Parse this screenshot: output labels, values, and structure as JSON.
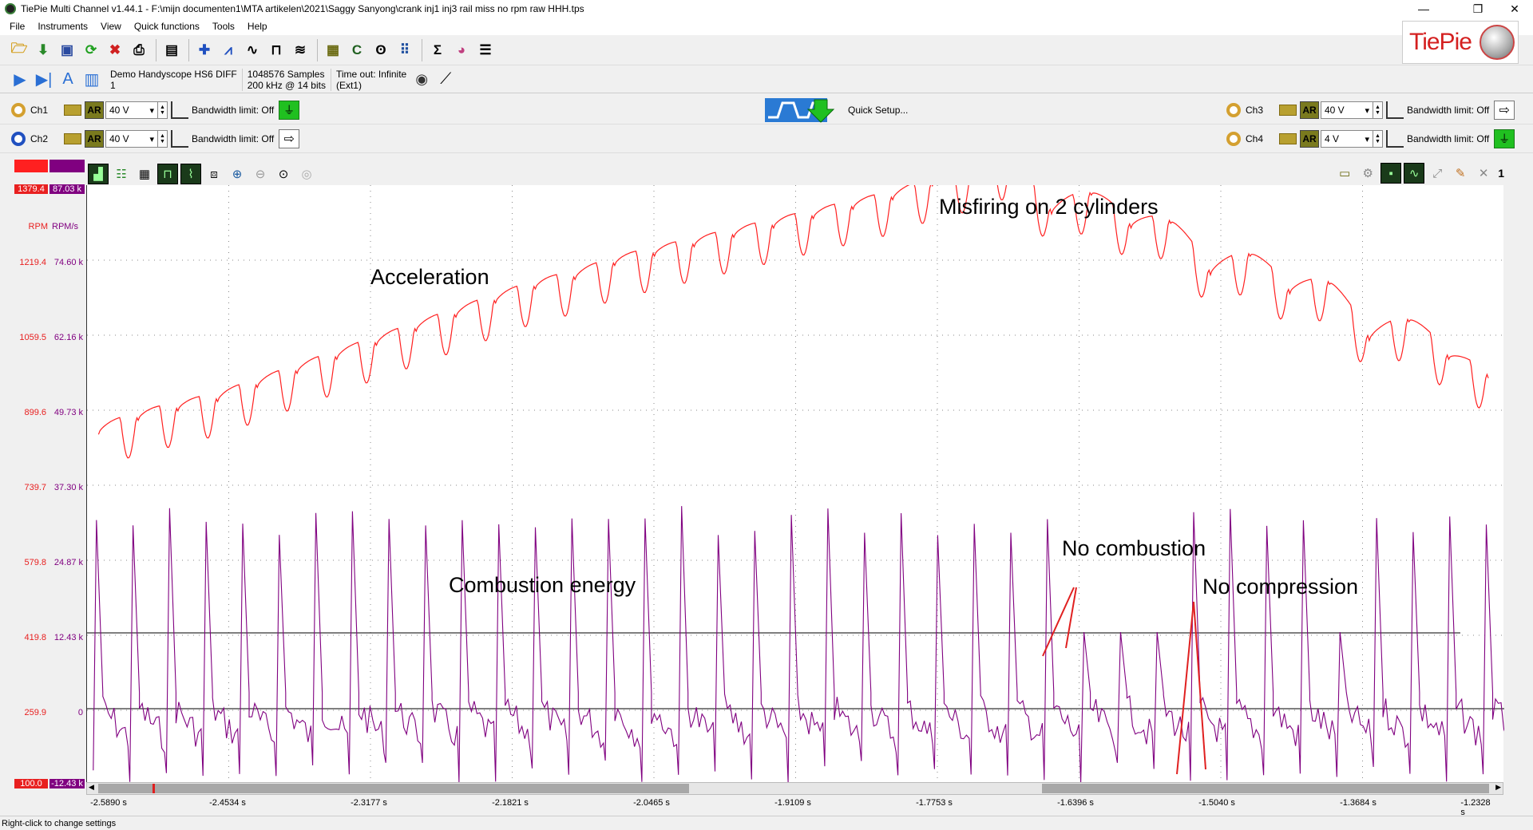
{
  "window": {
    "title": "TiePie Multi Channel v1.44.1 - F:\\mijn documenten1\\MTA artikelen\\2021\\Saggy Sanyong\\crank inj1 inj3 rail miss no rpm raw HHH.tps",
    "minimize": "—",
    "maximize": "❐",
    "close": "✕"
  },
  "menu": [
    {
      "label": "File"
    },
    {
      "label": "Instruments"
    },
    {
      "label": "View"
    },
    {
      "label": "Quick functions"
    },
    {
      "label": "Tools"
    },
    {
      "label": "Help"
    }
  ],
  "logo": {
    "text": "TiePie"
  },
  "acquisition": {
    "device_line1": "Demo Handyscope HS6 DIFF",
    "device_line2": "1",
    "samples_line1": "1048576 Samples",
    "samples_line2": "200 kHz @ 14 bits",
    "timeout_line1": "Time out: Infinite",
    "timeout_line2": "(Ext1)"
  },
  "channels": {
    "ch1": {
      "label": "Ch1",
      "ar": "AR",
      "range": "40 V",
      "bandwidth": "Bandwidth limit: Off"
    },
    "ch2": {
      "label": "Ch2",
      "ar": "AR",
      "range": "40 V",
      "bandwidth": "Bandwidth limit: Off"
    },
    "ch3": {
      "label": "Ch3",
      "ar": "AR",
      "range": "40 V",
      "bandwidth": "Bandwidth limit: Off"
    },
    "ch4": {
      "label": "Ch4",
      "ar": "AR",
      "range": "4 V",
      "bandwidth": "Bandwidth limit: Off"
    }
  },
  "quick_setup": {
    "label": "Quick Setup..."
  },
  "scope": {
    "window_index": "1",
    "axis_top_red": "1379.4",
    "axis_top_purple": "87.03 k",
    "axis_bottom_red": "100.0",
    "axis_bottom_purple": "-12.43 k",
    "unit_red": "RPM",
    "unit_purple": "RPM/s",
    "colors": {
      "rpm": "#ff2020",
      "energy": "#800080"
    }
  },
  "chart_data": {
    "type": "line",
    "title": "",
    "xlabel": "",
    "ylabel": "",
    "x_ticks": [
      "-2.5890 s",
      "-2.4534 s",
      "-2.3177 s",
      "-2.1821 s",
      "-2.0465 s",
      "-1.9109 s",
      "-1.7753 s",
      "-1.6396 s",
      "-1.5040 s",
      "-1.3684 s",
      "-1.2328 s"
    ],
    "xlim": [
      -2.589,
      -1.2328
    ],
    "y_ticks_rpm": [
      "1219.4",
      "1059.5",
      "899.6",
      "739.7",
      "579.8",
      "419.8",
      "259.9"
    ],
    "y_ticks_rpms": [
      "74.60 k",
      "62.16 k",
      "49.73 k",
      "37.30 k",
      "24.87 k",
      "12.43 k",
      "0"
    ],
    "ylim_rpm": [
      100.0,
      1379.4
    ],
    "series": [
      {
        "name": "RPM",
        "peak_times": [
          -2.578,
          -2.54,
          -2.502,
          -2.464,
          -2.426,
          -2.388,
          -2.35,
          -2.312,
          -2.274,
          -2.236,
          -2.198,
          -2.16,
          -2.122,
          -2.084,
          -2.046,
          -2.008,
          -1.97,
          -1.932,
          -1.894,
          -1.856,
          -1.818,
          -1.78,
          -1.742,
          -1.704,
          -1.666,
          -1.628,
          -1.59,
          -1.552,
          -1.514,
          -1.476,
          -1.438,
          -1.4,
          -1.362,
          -1.324,
          -1.286,
          -1.248
        ],
        "description_values_rpm": [
          780,
          810,
          830,
          850,
          880,
          910,
          940,
          970,
          1000,
          1030,
          1060,
          1090,
          1110,
          1140,
          1160,
          1180,
          1200,
          1220,
          1240,
          1260,
          1280,
          1310,
          1330,
          1360,
          1250,
          1290,
          1220,
          1230,
          1120,
          1160,
          1080,
          1100,
          980,
          1020,
          940,
          900
        ]
      },
      {
        "name": "RPM/s",
        "spike_times": [
          -2.58,
          -2.545,
          -2.51,
          -2.475,
          -2.44,
          -2.405,
          -2.37,
          -2.335,
          -2.3,
          -2.265,
          -2.23,
          -2.195,
          -2.16,
          -2.125,
          -2.09,
          -2.055,
          -2.02,
          -1.985,
          -1.95,
          -1.915,
          -1.88,
          -1.845,
          -1.81,
          -1.775,
          -1.74,
          -1.705,
          -1.67,
          -1.635,
          -1.6,
          -1.565,
          -1.53,
          -1.495,
          -1.46,
          -1.425,
          -1.39,
          -1.355,
          -1.32,
          -1.285,
          -1.25
        ]
      }
    ],
    "cursors": {
      "upper_level": "12.43 k",
      "lower_level": "0"
    },
    "annotations": [
      "Acceleration",
      "Misfiring on 2 cylinders",
      "Combustion energy",
      "No combustion",
      "No compression"
    ]
  },
  "statusbar": {
    "text": "Right-click to change settings"
  }
}
